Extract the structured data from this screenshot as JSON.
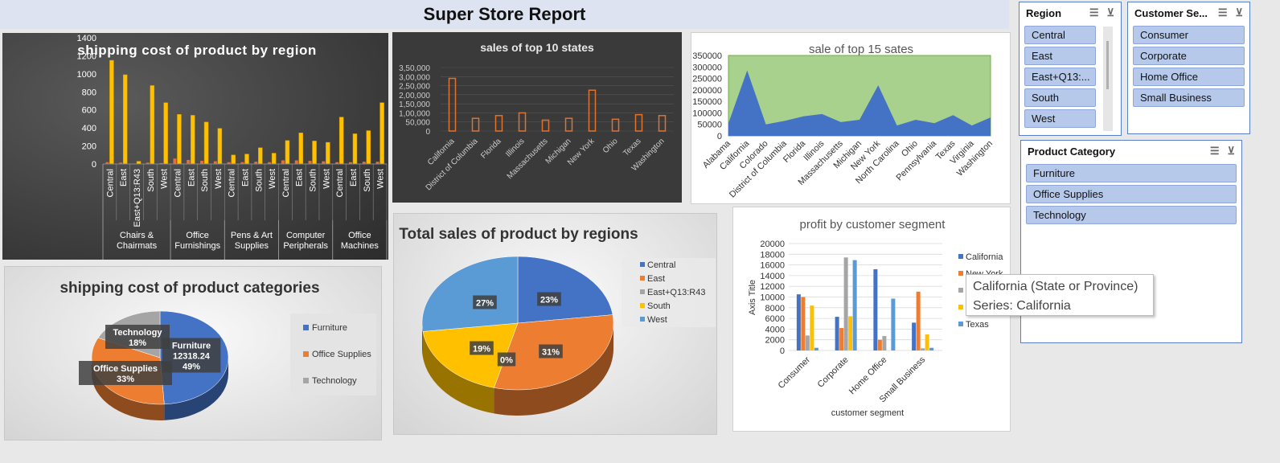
{
  "report_title": "Super Store Report",
  "colors": {
    "central": "#4472c4",
    "east": "#ed7d31",
    "eq": "#a5a5a5",
    "south": "#ffc000",
    "west": "#5b9bd5",
    "gold": "#ffc000"
  },
  "chart_data": [
    {
      "id": "shipping-region",
      "type": "bar",
      "title": "shipping cost of product by region",
      "yticks": [
        "1400",
        "1200",
        "1000",
        "800",
        "600",
        "400",
        "200",
        "0"
      ],
      "ylim": [
        0,
        1400
      ],
      "groups": [
        {
          "name": "Chairs & Chairmats",
          "lines": [
            "Chairs &",
            "Chairmats"
          ],
          "regions": [
            "Central",
            "East",
            "East+Q13:R43",
            "South",
            "West"
          ],
          "values": [
            1150,
            990,
            30,
            870,
            680
          ],
          "small": [
            20,
            15,
            5,
            15,
            10
          ]
        },
        {
          "name": "Office Furnishings",
          "lines": [
            "Office",
            "Furnishings"
          ],
          "regions": [
            "Central",
            "East",
            "South",
            "West"
          ],
          "values": [
            550,
            540,
            465,
            395
          ],
          "small": [
            60,
            45,
            35,
            30
          ]
        },
        {
          "name": "Pens & Art Supplies",
          "lines": [
            "Pens & Art",
            "Supplies"
          ],
          "regions": [
            "Central",
            "East",
            "South",
            "West"
          ],
          "values": [
            100,
            110,
            180,
            120
          ],
          "small": [
            20,
            20,
            25,
            20
          ]
        },
        {
          "name": "Computer Peripherals",
          "lines": [
            "Computer",
            "Peripherals"
          ],
          "regions": [
            "Central",
            "East",
            "South",
            "West"
          ],
          "values": [
            260,
            345,
            255,
            240
          ],
          "small": [
            40,
            40,
            35,
            30
          ]
        },
        {
          "name": "Office Machines",
          "lines": [
            "Office",
            "Machines"
          ],
          "regions": [
            "Central",
            "East",
            "South",
            "West"
          ],
          "values": [
            520,
            335,
            370,
            680
          ],
          "small": [
            20,
            20,
            25,
            25
          ]
        }
      ]
    },
    {
      "id": "top10",
      "type": "bar",
      "title": "sales of top 10 states",
      "yticks": [
        "3,50,000",
        "3,00,000",
        "2,50,000",
        "2,00,000",
        "1,50,000",
        "1,00,000",
        "50,000",
        "0"
      ],
      "ylim": [
        0,
        350000
      ],
      "categories": [
        "California",
        "District of Columbia",
        "Florida",
        "Illinois",
        "Massachusetts",
        "Michigan",
        "New York",
        "Ohio",
        "Texas",
        "Washington"
      ],
      "values": [
        290000,
        70000,
        85000,
        100000,
        60000,
        70000,
        225000,
        65000,
        90000,
        85000
      ]
    },
    {
      "id": "top15",
      "type": "area",
      "title": "sale of  top 15 sates",
      "yticks": [
        "350000",
        "300000",
        "250000",
        "200000",
        "150000",
        "100000",
        "50000",
        "0"
      ],
      "ylim": [
        0,
        350000
      ],
      "categories": [
        "Alabama",
        "California",
        "Colorado",
        "District of Columbia",
        "Florida",
        "Illinois",
        "Massachusetts",
        "Michigan",
        "New York",
        "North Carolina",
        "Ohio",
        "Pennsylvania",
        "Texas",
        "Virginia",
        "Washington"
      ],
      "values": [
        55000,
        285000,
        50000,
        65000,
        85000,
        95000,
        60000,
        70000,
        220000,
        45000,
        70000,
        55000,
        90000,
        45000,
        80000
      ]
    },
    {
      "id": "ship-cat",
      "type": "pie",
      "title": "shipping cost of product categories",
      "slices": [
        {
          "name": "Furniture",
          "value": 49,
          "label": "Furniture\n12318.24\n49%"
        },
        {
          "name": "Office Supplies",
          "value": 33,
          "label": "Office Supplies\n33%"
        },
        {
          "name": "Technology",
          "value": 18,
          "label": "Technology\n18%"
        }
      ],
      "legend": [
        "Furniture",
        "Office Supplies",
        "Technology"
      ]
    },
    {
      "id": "sales-regions",
      "type": "pie",
      "title": "Total sales of product by regions",
      "slices": [
        {
          "name": "Central",
          "value": 23,
          "label": "23%"
        },
        {
          "name": "East",
          "value": 31,
          "label": "31%"
        },
        {
          "name": "East+Q13:R43",
          "value": 0,
          "label": "0%"
        },
        {
          "name": "South",
          "value": 19,
          "label": "19%"
        },
        {
          "name": "West",
          "value": 27,
          "label": "27%"
        }
      ],
      "legend": [
        "Central",
        "East",
        "East+Q13:R43",
        "South",
        "West"
      ]
    },
    {
      "id": "profit-seg",
      "type": "bar",
      "title": "profit by customer segment",
      "xlabel": "customer segment",
      "ylabel": "Axis Title",
      "yticks": [
        "20000",
        "18000",
        "16000",
        "14000",
        "12000",
        "10000",
        "8000",
        "6000",
        "4000",
        "2000",
        "0"
      ],
      "ylim": [
        0,
        20000
      ],
      "categories": [
        "Consumer",
        "Corporate",
        "Home Office",
        "Small Business"
      ],
      "series": [
        {
          "name": "California",
          "values": [
            10500,
            6300,
            15200,
            5200
          ]
        },
        {
          "name": "New York",
          "values": [
            10000,
            4200,
            2000,
            11000
          ]
        },
        {
          "name": "Ohio",
          "values": [
            2800,
            17400,
            2700,
            400
          ]
        },
        {
          "name": "Pennsylvania",
          "values": [
            8400,
            6400,
            0,
            3000
          ]
        },
        {
          "name": "Texas",
          "values": [
            500,
            16900,
            9700,
            500
          ]
        }
      ],
      "legend_visible": [
        "California",
        "New York",
        "",
        "",
        "Texas"
      ]
    }
  ],
  "tooltip": {
    "line1": "California (State or Province)",
    "line2": "Series: California"
  },
  "slicers": {
    "region": {
      "title": "Region",
      "items": [
        "Central",
        "East",
        "East+Q13:...",
        "South",
        "West"
      ]
    },
    "segment": {
      "title": "Customer Se...",
      "items": [
        "Consumer",
        "Corporate",
        "Home Office",
        "Small Business"
      ]
    },
    "category": {
      "title": "Product Category",
      "items": [
        "Furniture",
        "Office Supplies",
        "Technology"
      ]
    }
  }
}
